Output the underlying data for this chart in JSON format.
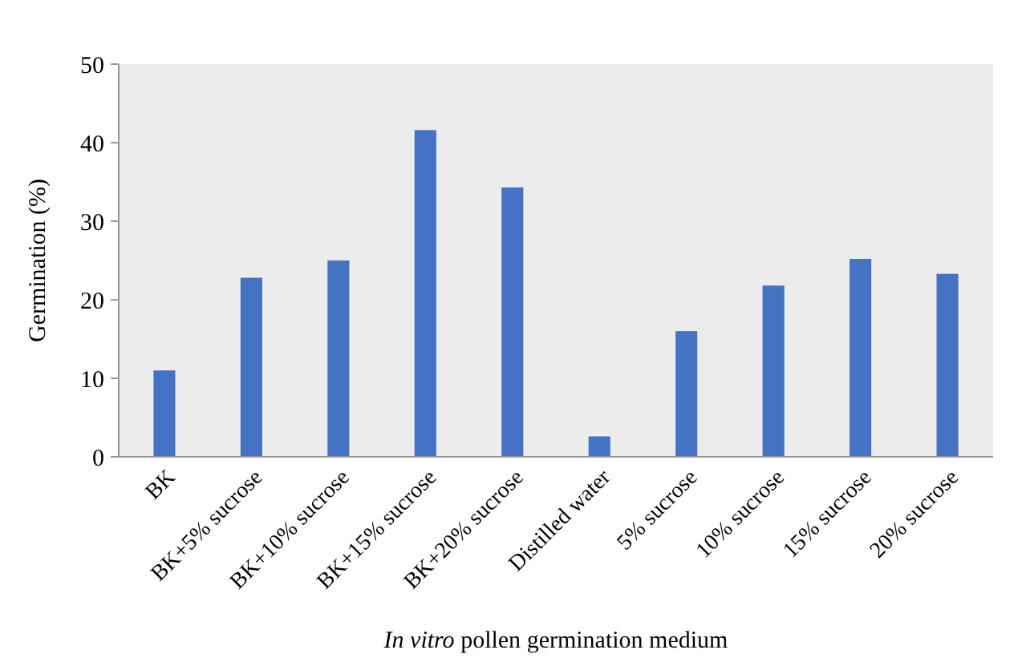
{
  "chart_data": {
    "type": "bar",
    "xlabel": "In vitro pollen germination medium",
    "ylabel": "Germination (%)",
    "categories": [
      "BK",
      "BK+5% sucrose",
      "BK+10% sucrose",
      "BK+15% sucrose",
      "BK+20% sucrose",
      "Distilled water",
      "5% sucrose",
      "10% sucrose",
      "15% sucrose",
      "20% sucrose"
    ],
    "values": [
      11,
      22.8,
      25,
      41.6,
      34.3,
      2.6,
      16,
      21.8,
      25.2,
      23.3
    ],
    "color": "#4472c4",
    "ylim": [
      0,
      50
    ],
    "yticks": [
      0,
      10,
      20,
      30,
      40,
      50
    ],
    "grid": false
  }
}
